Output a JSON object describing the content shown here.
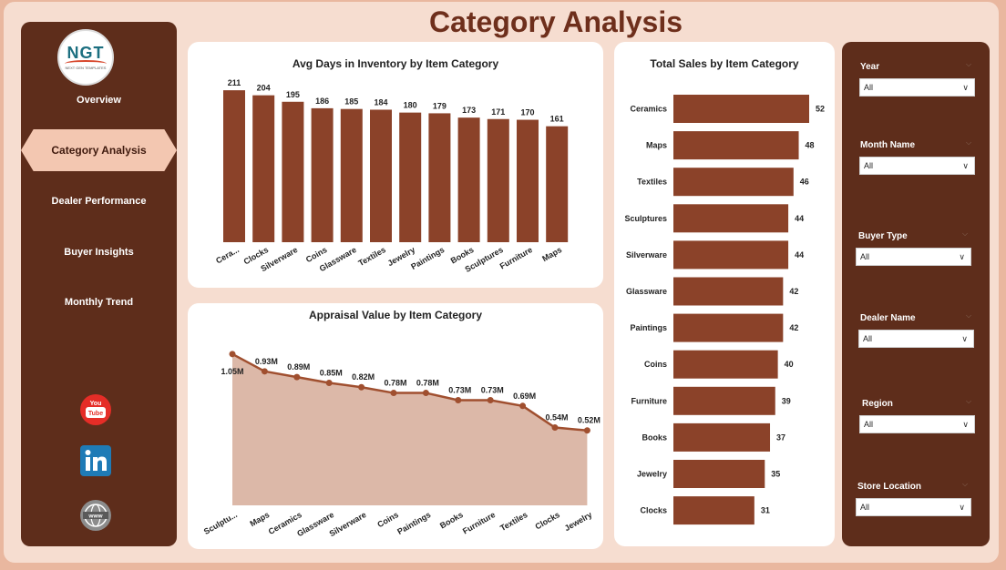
{
  "page": {
    "title": "Category Analysis"
  },
  "logo": {
    "text": "NGT",
    "subtext": "NEXT GEN TEMPLATES"
  },
  "nav": {
    "items": [
      "Overview",
      "Dealer Performance",
      "Buyer Insights",
      "Monthly Trend"
    ],
    "active": "Category Analysis"
  },
  "social": [
    "youtube-icon",
    "linkedin-icon",
    "globe-icon"
  ],
  "colors": {
    "bar": "#8b4229",
    "area": "#dcb8a8",
    "line": "#a04f2f",
    "sidebar": "#5e2d1b",
    "active_nav": "#f3c7b1",
    "title": "#6e2f1c"
  },
  "filters": [
    {
      "label": "Year",
      "value": "All"
    },
    {
      "label": "Month Name",
      "value": "All"
    },
    {
      "label": "Buyer Type",
      "value": "All"
    },
    {
      "label": "Dealer Name",
      "value": "All"
    },
    {
      "label": "Region",
      "value": "All"
    },
    {
      "label": "Store Location",
      "value": "All"
    }
  ],
  "chart_data": [
    {
      "type": "bar",
      "title": "Avg Days in Inventory by Item Category",
      "categories": [
        "Cera...",
        "Clocks",
        "Silverware",
        "Coins",
        "Glassware",
        "Textiles",
        "Jewelry",
        "Paintings",
        "Books",
        "Sculptures",
        "Furniture",
        "Maps"
      ],
      "values": [
        211,
        204,
        195,
        186,
        185,
        184,
        180,
        179,
        173,
        171,
        170,
        161
      ],
      "data_labels": [
        "211",
        "204",
        "195",
        "186",
        "185",
        "184",
        "180",
        "179",
        "173",
        "171",
        "170",
        "161"
      ],
      "ylim": [
        0,
        220
      ]
    },
    {
      "type": "area",
      "title": "Appraisal Value by Item Category",
      "categories": [
        "Sculptu...",
        "Maps",
        "Ceramics",
        "Glassware",
        "Silverware",
        "Coins",
        "Paintings",
        "Books",
        "Furniture",
        "Textiles",
        "Clocks",
        "Jewelry"
      ],
      "values": [
        1.05,
        0.93,
        0.89,
        0.85,
        0.82,
        0.78,
        0.78,
        0.73,
        0.73,
        0.69,
        0.54,
        0.52
      ],
      "data_labels": [
        "1.05M",
        "0.93M",
        "0.89M",
        "0.85M",
        "0.82M",
        "0.78M",
        "0.78M",
        "0.73M",
        "0.73M",
        "0.69M",
        "0.54M",
        "0.52M"
      ],
      "ylim": [
        0,
        1.15
      ]
    },
    {
      "type": "bar",
      "orientation": "horizontal",
      "title": "Total Sales by Item Category",
      "categories": [
        "Ceramics",
        "Maps",
        "Textiles",
        "Sculptures",
        "Silverware",
        "Glassware",
        "Paintings",
        "Coins",
        "Furniture",
        "Books",
        "Jewelry",
        "Clocks"
      ],
      "values": [
        52,
        48,
        46,
        44,
        44,
        42,
        42,
        40,
        39,
        37,
        35,
        31
      ],
      "data_labels": [
        "52",
        "48",
        "46",
        "44",
        "44",
        "42",
        "42",
        "40",
        "39",
        "37",
        "35",
        "31"
      ],
      "xlim": [
        0,
        52
      ]
    }
  ]
}
